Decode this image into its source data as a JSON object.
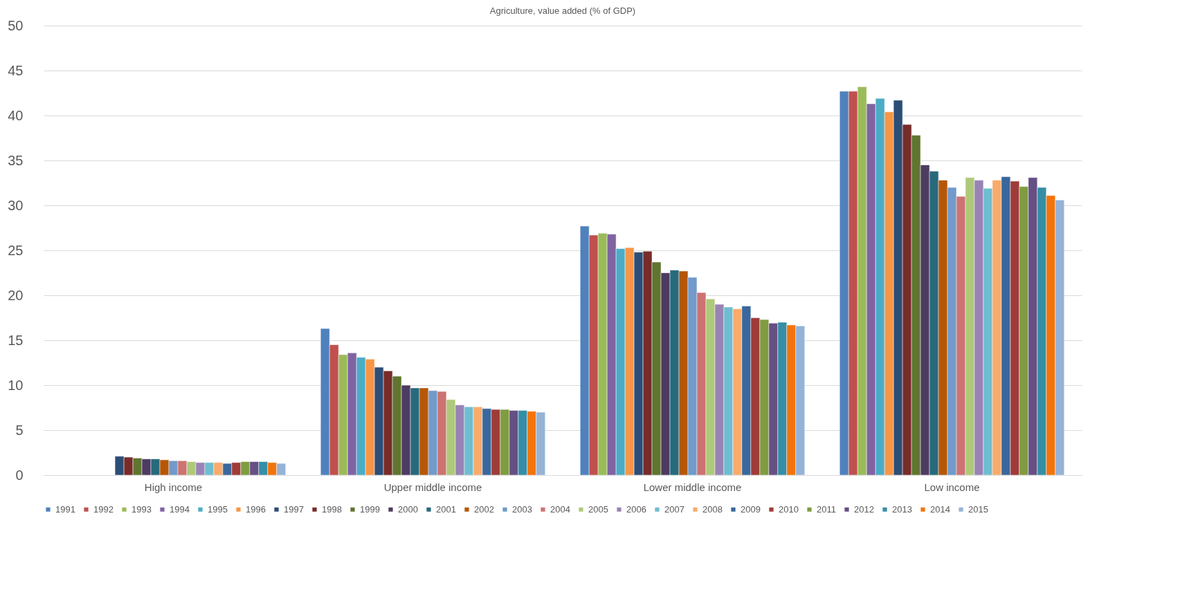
{
  "chart_data": {
    "type": "bar",
    "title": "Agriculture, value added (% of GDP)",
    "categories": [
      "High income",
      "Upper middle income",
      "Lower middle income",
      "Low income"
    ],
    "ylim": [
      0,
      50
    ],
    "yticks": [
      0,
      5,
      10,
      15,
      20,
      25,
      30,
      35,
      40,
      45,
      50
    ],
    "grid": "y",
    "legend": "bottom",
    "series": [
      {
        "name": "1991",
        "color": "#4f81bd",
        "values": [
          null,
          16.3,
          27.7,
          42.7
        ]
      },
      {
        "name": "1992",
        "color": "#c0504d",
        "values": [
          null,
          14.5,
          26.7,
          42.7
        ]
      },
      {
        "name": "1993",
        "color": "#9bbb59",
        "values": [
          null,
          13.4,
          26.9,
          43.2
        ]
      },
      {
        "name": "1994",
        "color": "#8064a2",
        "values": [
          null,
          13.6,
          26.8,
          41.3
        ]
      },
      {
        "name": "1995",
        "color": "#4bacc6",
        "values": [
          null,
          13.1,
          25.2,
          41.9
        ]
      },
      {
        "name": "1996",
        "color": "#f79646",
        "values": [
          null,
          12.9,
          25.3,
          40.4
        ]
      },
      {
        "name": "1997",
        "color": "#2c4d75",
        "values": [
          2.1,
          12.0,
          24.8,
          41.7
        ]
      },
      {
        "name": "1998",
        "color": "#772c2a",
        "values": [
          2.0,
          11.6,
          24.9,
          39.0
        ]
      },
      {
        "name": "1999",
        "color": "#5f7530",
        "values": [
          1.9,
          11.0,
          23.7,
          37.8
        ]
      },
      {
        "name": "2000",
        "color": "#4d3b62",
        "values": [
          1.8,
          10.0,
          22.5,
          34.5
        ]
      },
      {
        "name": "2001",
        "color": "#276a7c",
        "values": [
          1.8,
          9.7,
          22.8,
          33.8
        ]
      },
      {
        "name": "2002",
        "color": "#b65708",
        "values": [
          1.7,
          9.7,
          22.7,
          32.8
        ]
      },
      {
        "name": "2003",
        "color": "#729aca",
        "values": [
          1.6,
          9.4,
          22.0,
          32.0
        ]
      },
      {
        "name": "2004",
        "color": "#cd7371",
        "values": [
          1.6,
          9.3,
          20.3,
          31.0
        ]
      },
      {
        "name": "2005",
        "color": "#afc97a",
        "values": [
          1.5,
          8.4,
          19.6,
          33.1
        ]
      },
      {
        "name": "2006",
        "color": "#9983b5",
        "values": [
          1.4,
          7.8,
          19.0,
          32.8
        ]
      },
      {
        "name": "2007",
        "color": "#6fbdd1",
        "values": [
          1.4,
          7.6,
          18.7,
          31.9
        ]
      },
      {
        "name": "2008",
        "color": "#f9ab6b",
        "values": [
          1.4,
          7.6,
          18.5,
          32.8
        ]
      },
      {
        "name": "2009",
        "color": "#3a679c",
        "values": [
          1.3,
          7.4,
          18.8,
          33.2
        ]
      },
      {
        "name": "2010",
        "color": "#9f3b38",
        "values": [
          1.4,
          7.3,
          17.5,
          32.7
        ]
      },
      {
        "name": "2011",
        "color": "#7f9c40",
        "values": [
          1.5,
          7.3,
          17.3,
          32.1
        ]
      },
      {
        "name": "2012",
        "color": "#664f83",
        "values": [
          1.5,
          7.2,
          16.9,
          33.1
        ]
      },
      {
        "name": "2013",
        "color": "#358ea6",
        "values": [
          1.5,
          7.2,
          17.0,
          32.0
        ]
      },
      {
        "name": "2014",
        "color": "#f3740b",
        "values": [
          1.4,
          7.1,
          16.7,
          31.1
        ]
      },
      {
        "name": "2015",
        "color": "#95b3d7",
        "values": [
          1.3,
          7.0,
          16.6,
          30.6
        ]
      }
    ]
  }
}
